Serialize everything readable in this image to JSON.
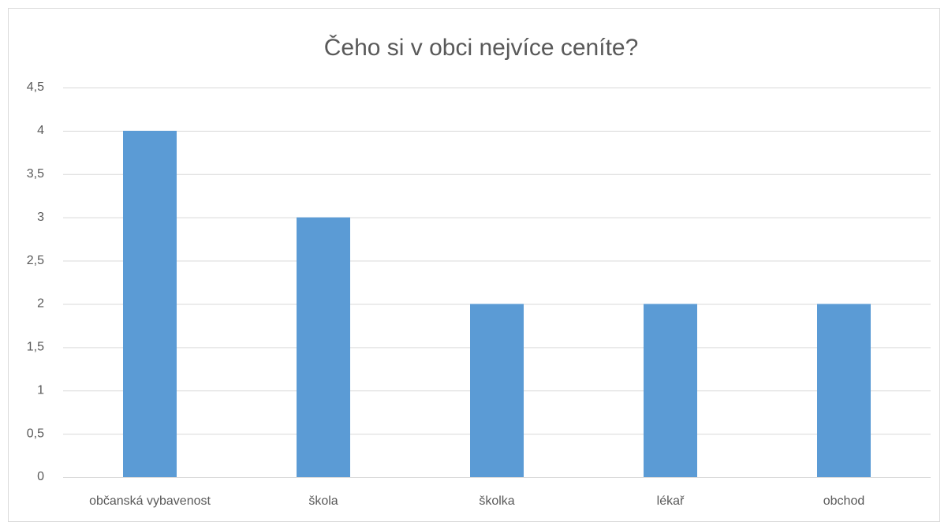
{
  "chart_data": {
    "type": "bar",
    "title": "Čeho si v obci nejvíce ceníte?",
    "categories": [
      "občanská vybavenost",
      "škola",
      "školka",
      "lékař",
      "obchod"
    ],
    "values": [
      4,
      3,
      2,
      2,
      2
    ],
    "color": "#5b9bd5",
    "ylim": [
      0,
      4.5
    ],
    "yticks": [
      0,
      {
        "value": 0.5,
        "label": "0,5"
      },
      1,
      {
        "value": 1.5,
        "label": "1,5"
      },
      2,
      {
        "value": 2.5,
        "label": "2,5"
      },
      3,
      {
        "value": 3.5,
        "label": "3,5"
      },
      4,
      {
        "value": 4.5,
        "label": "4,5"
      }
    ],
    "grid": true
  }
}
